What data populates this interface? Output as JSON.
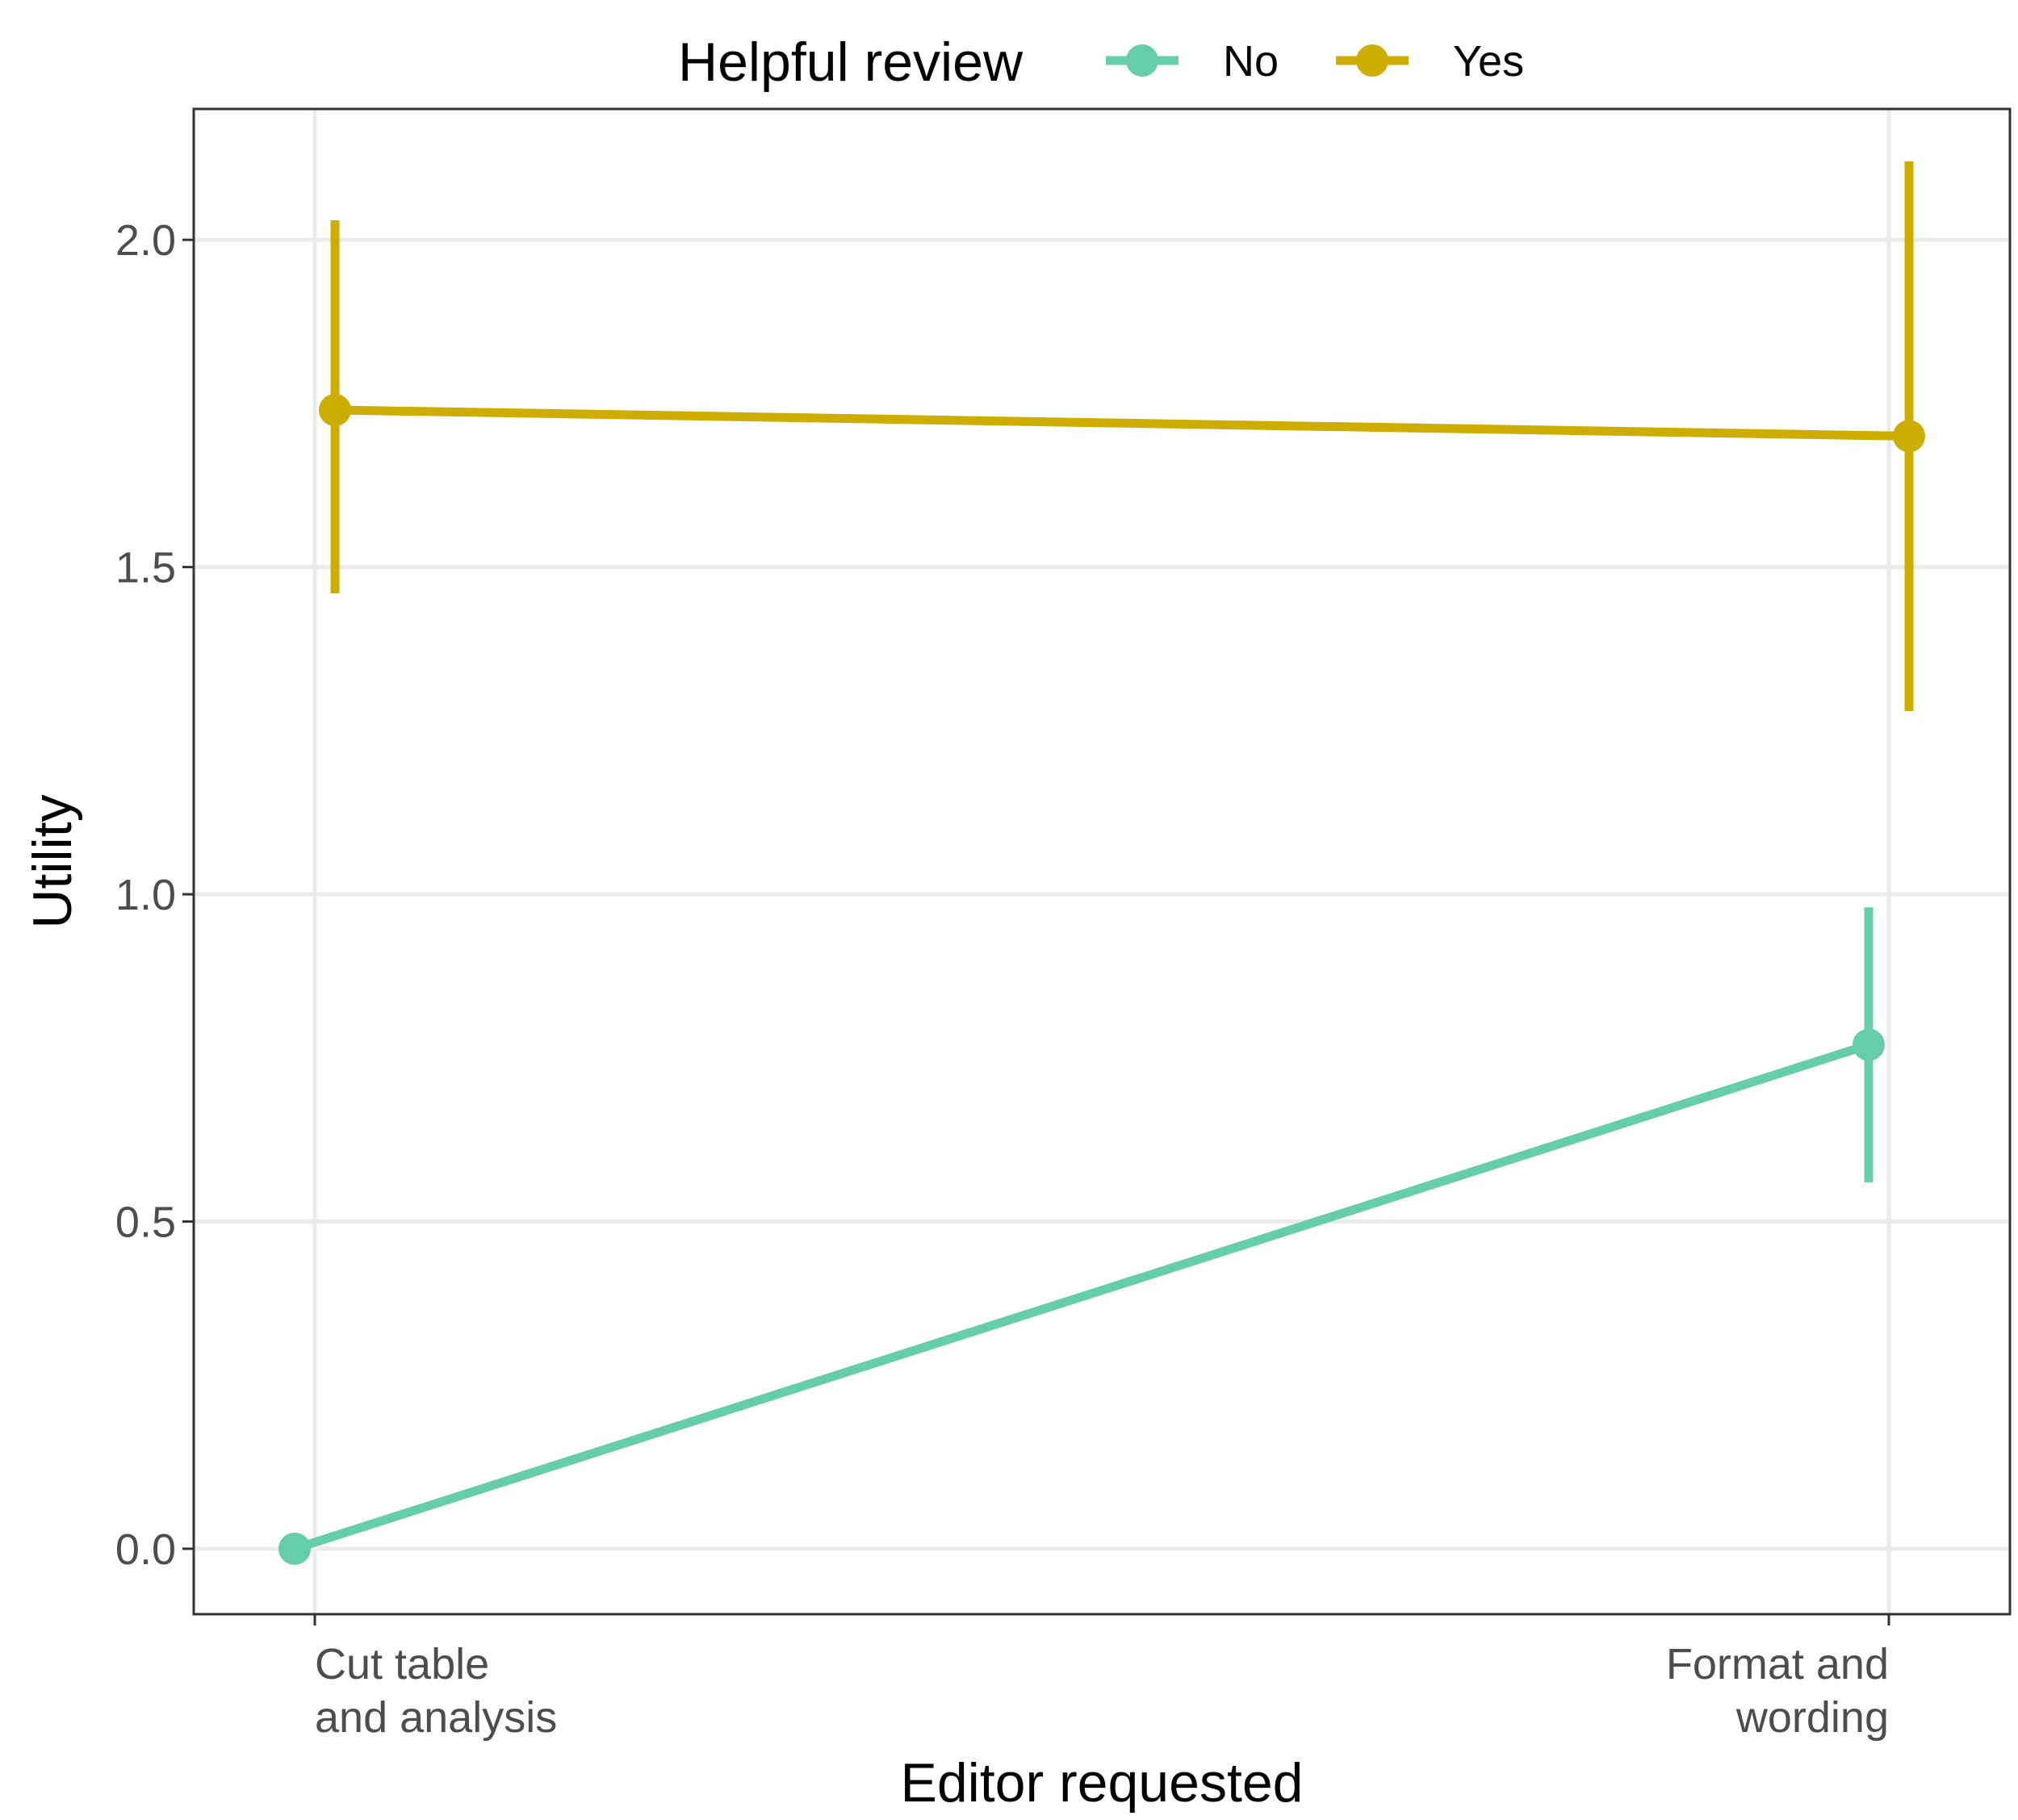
{
  "chart_data": {
    "type": "line",
    "xlabel": "Editor requested",
    "ylabel": "Utility",
    "categories": [
      [
        "Cut table",
        "and analysis"
      ],
      [
        "Format and",
        "wording"
      ]
    ],
    "ylim": [
      -0.1,
      2.2
    ],
    "yticks": [
      "0.0",
      "0.5",
      "1.0",
      "1.5",
      "2.0"
    ],
    "grid": true,
    "legend": {
      "title": "Helpful review",
      "position": "top"
    },
    "series": [
      {
        "name": "No",
        "color": "#66cdaa",
        "values": [
          0.0,
          0.77
        ],
        "error_low": [
          0.0,
          0.56
        ],
        "error_high": [
          0.0,
          0.98
        ]
      },
      {
        "name": "Yes",
        "color": "#ccad00",
        "values": [
          1.74,
          1.7
        ],
        "error_low": [
          1.46,
          1.28
        ],
        "error_high": [
          2.03,
          2.12
        ]
      }
    ]
  }
}
